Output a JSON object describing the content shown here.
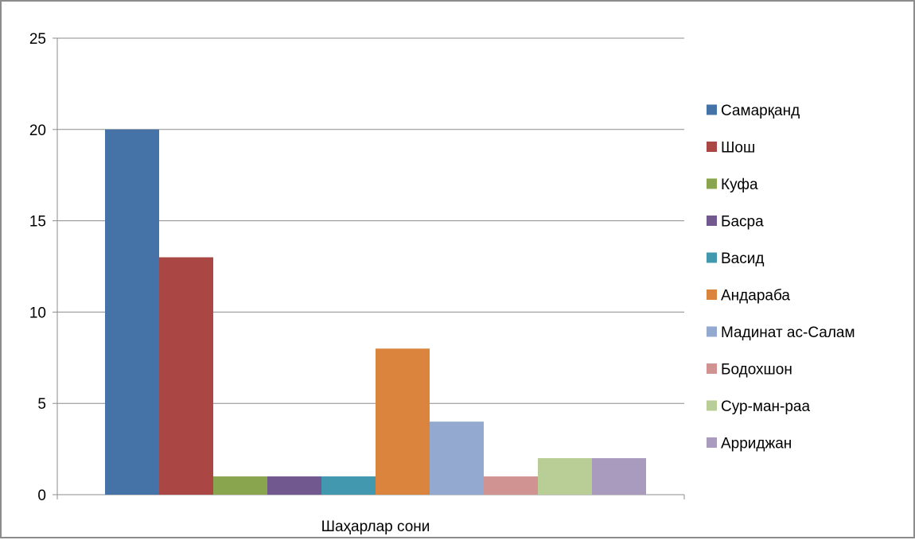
{
  "chart_data": {
    "type": "bar",
    "title": "",
    "xlabel": "",
    "ylabel": "",
    "categories": [
      "Шаҳарлар сони"
    ],
    "ylim": [
      0,
      25
    ],
    "yticks": [
      0,
      5,
      10,
      15,
      20,
      25
    ],
    "grid": true,
    "legend_position": "right",
    "series": [
      {
        "name": "Самарқанд",
        "values": [
          20
        ],
        "color": "#4572a7"
      },
      {
        "name": "Шош",
        "values": [
          13
        ],
        "color": "#aa4643"
      },
      {
        "name": "Куфа",
        "values": [
          1
        ],
        "color": "#89a54e"
      },
      {
        "name": "Басра",
        "values": [
          1
        ],
        "color": "#71588f"
      },
      {
        "name": "Васид",
        "values": [
          1
        ],
        "color": "#4198af"
      },
      {
        "name": "Андараба",
        "values": [
          8
        ],
        "color": "#db843d"
      },
      {
        "name": "Мадинат ас-Салам",
        "values": [
          4
        ],
        "color": "#93a9cf"
      },
      {
        "name": "Бодохшон",
        "values": [
          1
        ],
        "color": "#d19392"
      },
      {
        "name": "Сур-ман-раа",
        "values": [
          2
        ],
        "color": "#b9cd96"
      },
      {
        "name": "Арриджан",
        "values": [
          2
        ],
        "color": "#a99bbd"
      }
    ]
  }
}
